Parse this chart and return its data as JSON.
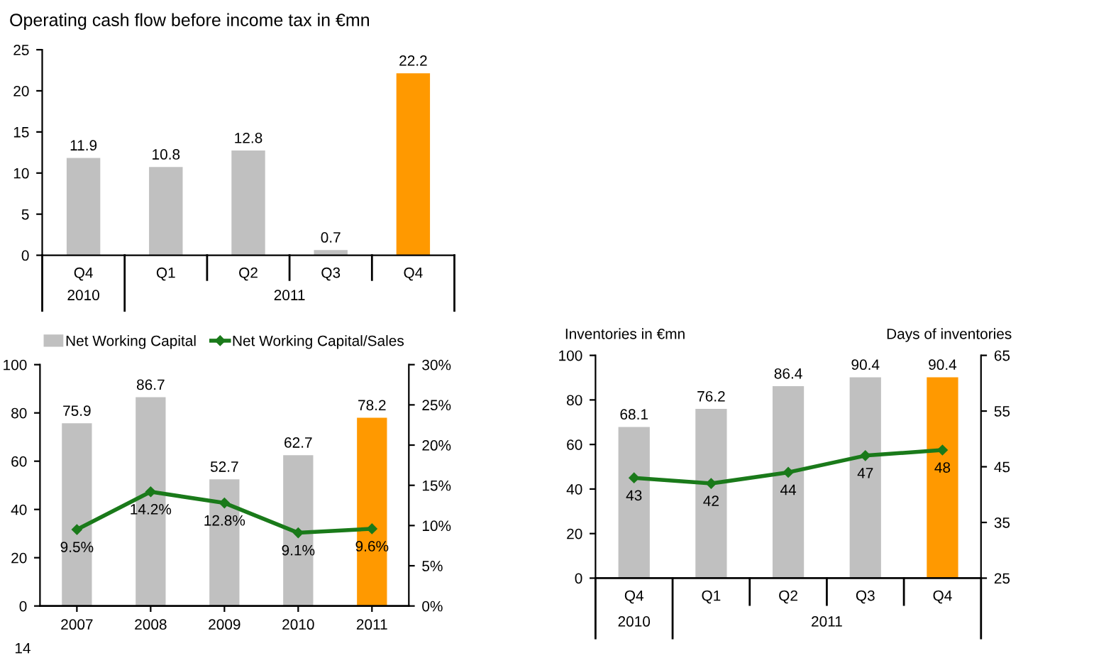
{
  "chart_data": [
    {
      "type": "bar",
      "title": "Operating cash flow before income tax in €mn",
      "categories": [
        "Q4",
        "Q1",
        "Q2",
        "Q3",
        "Q4"
      ],
      "annotations": [
        "2010",
        "2011"
      ],
      "series": [
        {
          "colors": [
            "#c0c0c0",
            "#c0c0c0",
            "#c0c0c0",
            "#c0c0c0",
            "#ff9900"
          ],
          "values": [
            11.9,
            10.8,
            12.8,
            0.7,
            22.2
          ]
        }
      ],
      "ylim": [
        0,
        25
      ],
      "yticks": [
        0,
        5,
        10,
        15,
        20,
        25
      ],
      "data_labels": true,
      "grid": false,
      "legend": false
    },
    {
      "type": "bar",
      "categories": [
        "2007",
        "2008",
        "2009",
        "2010",
        "2011"
      ],
      "annotations": [
        "14"
      ],
      "series": [
        {
          "name": "Net Working Capital",
          "color": "#c0c0c0",
          "colors": [
            "#c0c0c0",
            "#c0c0c0",
            "#c0c0c0",
            "#c0c0c0",
            "#ff9900"
          ],
          "values": [
            75.9,
            86.7,
            52.7,
            62.7,
            78.2
          ],
          "value_labels": [
            "75.9",
            "86.7",
            "52.7",
            "62.7",
            "78.2"
          ]
        },
        {
          "type": "line",
          "name": "Net Working Capital/Sales",
          "color": "#1a7a1a",
          "axis": "y2",
          "marker": "diamond",
          "line_style": "solid",
          "values": [
            9.5,
            14.2,
            12.8,
            9.1,
            9.6
          ],
          "value_labels": [
            "9.5%",
            "14.2%",
            "12.8%",
            "9.1%",
            "9.6%"
          ]
        }
      ],
      "ylim": [
        0,
        100
      ],
      "yticks": [
        0,
        20,
        40,
        60,
        80,
        100
      ],
      "y2lim": [
        0,
        30
      ],
      "y2ticks": [
        {
          "value": 0,
          "label": "0%"
        },
        {
          "value": 5,
          "label": "5%"
        },
        {
          "value": 10,
          "label": "10%"
        },
        {
          "value": 15,
          "label": "15%"
        },
        {
          "value": 20,
          "label": "20%"
        },
        {
          "value": 25,
          "label": "25%"
        },
        {
          "value": 30,
          "label": "30%"
        }
      ],
      "grid": false,
      "legend": "top"
    },
    {
      "type": "bar",
      "ylabel": "Inventories in €mn",
      "y2label": "Days of inventories",
      "categories": [
        "Q4",
        "Q1",
        "Q2",
        "Q3",
        "Q4"
      ],
      "annotations": [
        "2010",
        "2011"
      ],
      "series": [
        {
          "colors": [
            "#c0c0c0",
            "#c0c0c0",
            "#c0c0c0",
            "#c0c0c0",
            "#ff9900"
          ],
          "values": [
            68.1,
            76.2,
            86.4,
            90.4,
            90.4
          ],
          "value_labels": [
            "68.1",
            "76.2",
            "86.4",
            "90.4",
            "90.4"
          ]
        },
        {
          "type": "line",
          "color": "#1a7a1a",
          "axis": "y2",
          "marker": "diamond",
          "line_style": "solid",
          "values": [
            43,
            42,
            44,
            47,
            48
          ],
          "value_labels": [
            "43",
            "42",
            "44",
            "47",
            "48"
          ]
        }
      ],
      "ylim": [
        0,
        100
      ],
      "yticks": [
        0,
        20,
        40,
        60,
        80,
        100
      ],
      "y2lim": [
        25,
        65
      ],
      "y2ticks": [
        25,
        35,
        45,
        55,
        65
      ],
      "grid": false,
      "legend": false
    }
  ]
}
